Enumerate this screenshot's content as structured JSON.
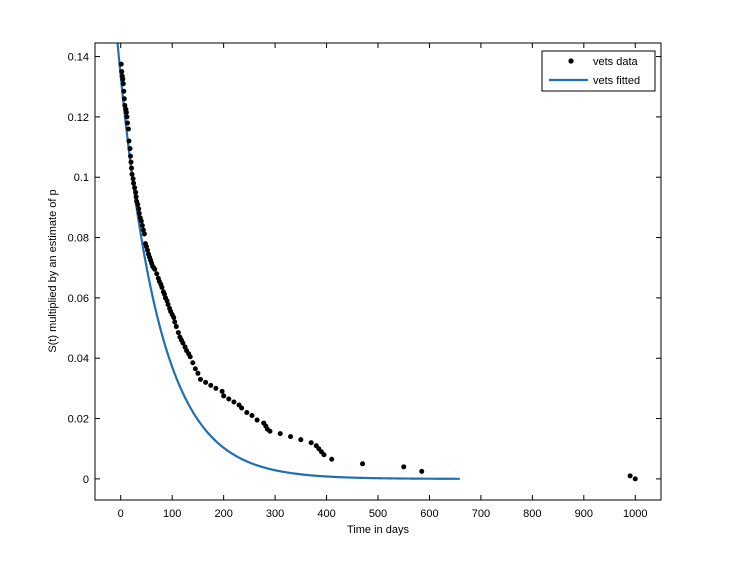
{
  "chart_data": {
    "type": "scatter",
    "title": "",
    "xlabel": "Time in days",
    "ylabel": "S(t)  multiplied by an estimate of p",
    "xlim": [
      -50,
      1050
    ],
    "ylim": [
      -0.007,
      0.1445
    ],
    "x_ticks": [
      0,
      100,
      200,
      300,
      400,
      500,
      600,
      700,
      800,
      900,
      1000
    ],
    "y_ticks": [
      0,
      0.02,
      0.04,
      0.06,
      0.08,
      0.1,
      0.12,
      0.14
    ],
    "x_tick_labels": [
      "0",
      "100",
      "200",
      "300",
      "400",
      "500",
      "600",
      "700",
      "800",
      "900",
      "1000"
    ],
    "y_tick_labels": [
      "0",
      "0.02",
      "0.04",
      "0.06",
      "0.08",
      "0.1",
      "0.12",
      "0.14"
    ],
    "grid": false,
    "legend": {
      "placement": "top-right",
      "entries": [
        "vets data",
        "vets fitted"
      ]
    },
    "colors": {
      "data": "#000000",
      "fitted": "#1f6fb4"
    },
    "series": [
      {
        "name": "vets data",
        "style": "markers",
        "x": [
          1,
          2,
          3,
          4,
          5,
          6,
          7,
          8,
          10,
          11,
          12,
          13,
          15,
          16,
          18,
          19,
          20,
          21,
          22,
          24,
          25,
          27,
          29,
          30,
          31,
          33,
          35,
          36,
          38,
          40,
          42,
          44,
          46,
          48,
          50,
          52,
          54,
          56,
          58,
          60,
          62,
          64,
          66,
          70,
          73,
          75,
          78,
          80,
          83,
          85,
          87,
          90,
          92,
          95,
          97,
          100,
          103,
          105,
          108,
          112,
          115,
          118,
          121,
          125,
          128,
          132,
          135,
          140,
          145,
          150,
          155,
          165,
          175,
          185,
          197,
          200,
          210,
          220,
          230,
          235,
          245,
          255,
          265,
          278,
          282,
          285,
          290,
          310,
          330,
          350,
          370,
          380,
          385,
          390,
          395,
          410,
          470,
          550,
          585,
          990,
          1000
        ],
        "y": [
          0.1375,
          0.135,
          0.1335,
          0.1325,
          0.131,
          0.1285,
          0.126,
          0.1238,
          0.1225,
          0.1215,
          0.12,
          0.118,
          0.116,
          0.112,
          0.1095,
          0.107,
          0.105,
          0.103,
          0.101,
          0.0995,
          0.098,
          0.0965,
          0.095,
          0.0935,
          0.092,
          0.091,
          0.0895,
          0.088,
          0.0865,
          0.0855,
          0.084,
          0.0825,
          0.0812,
          0.078,
          0.077,
          0.0758,
          0.0745,
          0.0735,
          0.0725,
          0.0715,
          0.0705,
          0.07,
          0.0695,
          0.068,
          0.0665,
          0.0655,
          0.0645,
          0.0635,
          0.062,
          0.0612,
          0.06,
          0.059,
          0.0578,
          0.0565,
          0.0555,
          0.0545,
          0.0535,
          0.052,
          0.0505,
          0.0485,
          0.047,
          0.046,
          0.045,
          0.0437,
          0.0425,
          0.0415,
          0.0405,
          0.0385,
          0.0365,
          0.035,
          0.033,
          0.032,
          0.031,
          0.03,
          0.029,
          0.0275,
          0.0265,
          0.0255,
          0.0245,
          0.0235,
          0.022,
          0.021,
          0.0195,
          0.0185,
          0.0175,
          0.0165,
          0.0158,
          0.015,
          0.014,
          0.013,
          0.012,
          0.011,
          0.01,
          0.009,
          0.008,
          0.0065,
          0.005,
          0.004,
          0.0025,
          0.001,
          0.0
        ]
      },
      {
        "name": "vets fitted",
        "style": "line",
        "function": "exponential",
        "amplitude": 0.1335,
        "rate_per_day": 0.0128,
        "x_range": [
          -15,
          660
        ]
      }
    ]
  }
}
